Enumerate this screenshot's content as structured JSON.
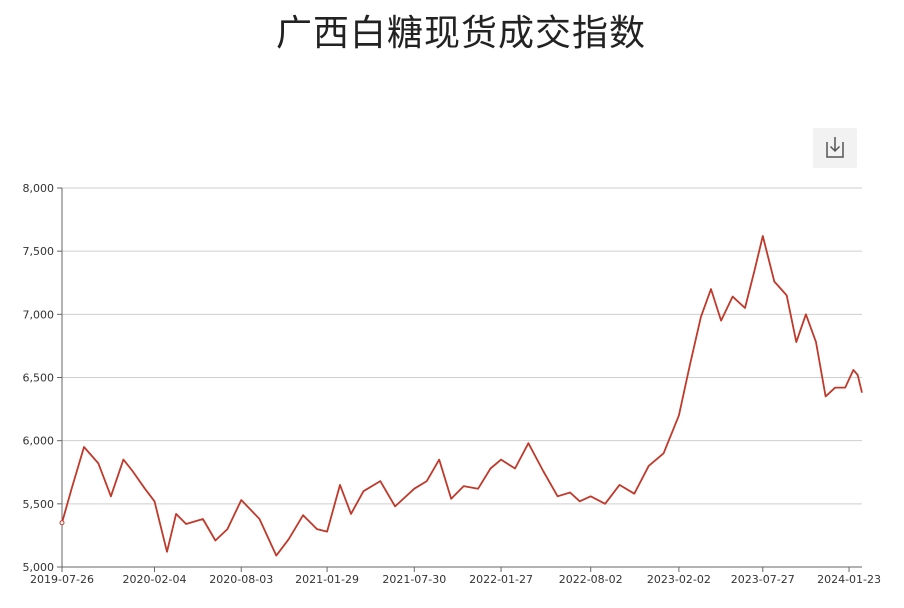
{
  "chart_data": {
    "type": "line",
    "title": "广西白糖现货成交指数",
    "ylim": [
      5000,
      8000
    ],
    "y_ticks": [
      "5,000",
      "5,500",
      "6,000",
      "6,500",
      "7,000",
      "7,500",
      "8,000"
    ],
    "y_tick_values": [
      5000,
      5500,
      6000,
      6500,
      7000,
      7500,
      8000
    ],
    "x_ticks": [
      "2019-07-26",
      "2020-02-04",
      "2020-08-03",
      "2021-01-29",
      "2021-07-30",
      "2022-01-27",
      "2022-08-02",
      "2023-02-02",
      "2023-07-27",
      "2024-01-23"
    ],
    "x": [
      "2019-07-26",
      "2019-08-15",
      "2019-09-10",
      "2019-10-10",
      "2019-11-05",
      "2019-12-01",
      "2019-12-20",
      "2020-01-15",
      "2020-02-04",
      "2020-03-01",
      "2020-03-20",
      "2020-04-10",
      "2020-05-15",
      "2020-06-10",
      "2020-07-05",
      "2020-08-03",
      "2020-09-10",
      "2020-10-15",
      "2020-11-10",
      "2020-12-10",
      "2021-01-08",
      "2021-01-29",
      "2021-02-25",
      "2021-03-20",
      "2021-04-15",
      "2021-05-20",
      "2021-06-20",
      "2021-07-30",
      "2021-08-25",
      "2021-09-20",
      "2021-10-15",
      "2021-11-10",
      "2021-12-10",
      "2022-01-05",
      "2022-01-27",
      "2022-02-25",
      "2022-03-25",
      "2022-04-25",
      "2022-05-25",
      "2022-06-20",
      "2022-07-10",
      "2022-08-02",
      "2022-09-01",
      "2022-10-01",
      "2022-11-01",
      "2022-12-01",
      "2023-01-01",
      "2023-02-02",
      "2023-02-25",
      "2023-03-20",
      "2023-04-10",
      "2023-05-01",
      "2023-05-25",
      "2023-06-20",
      "2023-07-10",
      "2023-07-27",
      "2023-08-20",
      "2023-09-15",
      "2023-10-05",
      "2023-10-25",
      "2023-11-15",
      "2023-12-05",
      "2023-12-25",
      "2024-01-15",
      "2024-02-01",
      "2024-02-10",
      "2024-02-19"
    ],
    "series": [
      {
        "values": [
          5350,
          5620,
          5950,
          5820,
          5560,
          5850,
          5760,
          5620,
          5520,
          5120,
          5420,
          5340,
          5380,
          5210,
          5300,
          5530,
          5380,
          5090,
          5220,
          5410,
          5300,
          5280,
          5650,
          5420,
          5600,
          5680,
          5480,
          5620,
          5680,
          5850,
          5540,
          5640,
          5620,
          5780,
          5850,
          5780,
          5980,
          5760,
          5560,
          5590,
          5520,
          5560,
          5500,
          5650,
          5580,
          5800,
          5900,
          6200,
          6600,
          6980,
          7200,
          6950,
          7140,
          7050,
          7350,
          7620,
          7260,
          7150,
          6780,
          7000,
          6780,
          6350,
          6420,
          6420,
          6560,
          6520,
          6380
        ],
        "color": "#c0392b"
      }
    ],
    "grid": true
  }
}
